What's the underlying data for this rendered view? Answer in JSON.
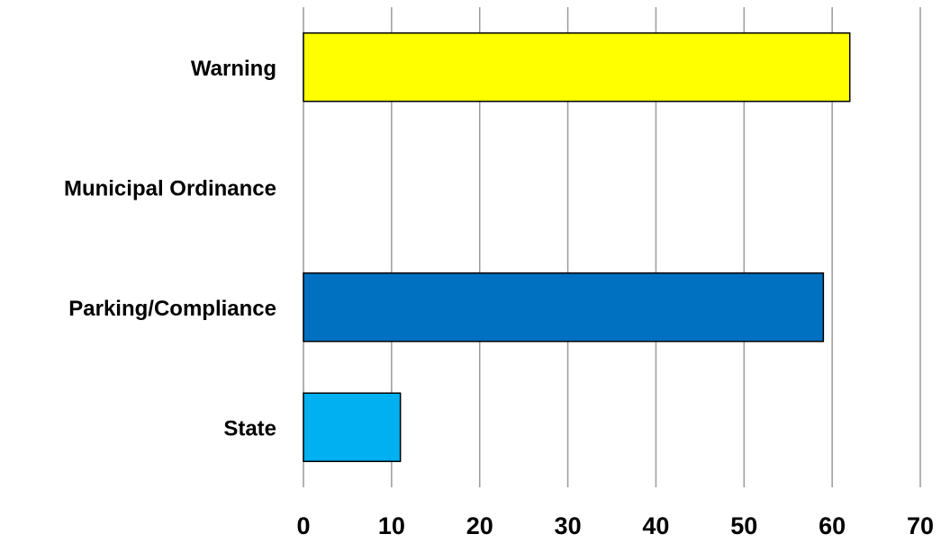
{
  "chart_data": {
    "type": "bar",
    "orientation": "horizontal",
    "title": "",
    "xlabel": "",
    "ylabel": "",
    "categories": [
      "Warning",
      "Municipal Ordinance",
      "Parking/Compliance",
      "State"
    ],
    "values": [
      62,
      0,
      59,
      11
    ],
    "colors": [
      "#ffff00",
      "#ffffff",
      "#0070c0",
      "#00b0f0"
    ],
    "xlim": [
      0,
      70
    ],
    "xticks": [
      0,
      10,
      20,
      30,
      40,
      50,
      60,
      70
    ],
    "grid": true,
    "legend": "none"
  }
}
